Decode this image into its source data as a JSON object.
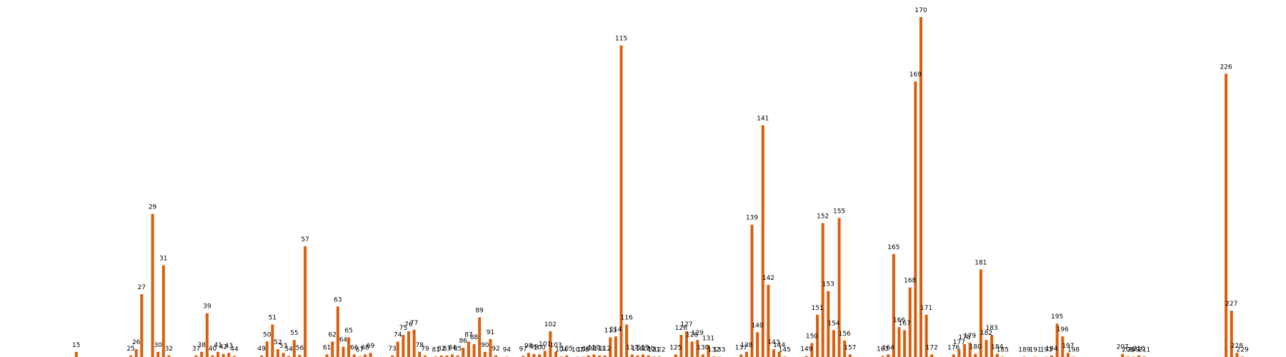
{
  "chart_data": {
    "type": "bar",
    "title": "",
    "xlabel": "",
    "ylabel": "",
    "color": "#d95f0e",
    "x_range": [
      1,
      237
    ],
    "ylim": [
      0,
      66
    ],
    "grid": false,
    "legend": "none",
    "points": [
      {
        "x": 15,
        "y": 1.0
      },
      {
        "x": 25,
        "y": 0.3
      },
      {
        "x": 26,
        "y": 1.5
      },
      {
        "x": 27,
        "y": 12.2
      },
      {
        "x": 29,
        "y": 27.8
      },
      {
        "x": 30,
        "y": 1.0
      },
      {
        "x": 31,
        "y": 17.8
      },
      {
        "x": 32,
        "y": 0.3
      },
      {
        "x": 37,
        "y": 0.3
      },
      {
        "x": 38,
        "y": 1.0
      },
      {
        "x": 39,
        "y": 8.5
      },
      {
        "x": 40,
        "y": 0.3
      },
      {
        "x": 41,
        "y": 1.0
      },
      {
        "x": 42,
        "y": 0.6
      },
      {
        "x": 43,
        "y": 0.8
      },
      {
        "x": 44,
        "y": 0.2
      },
      {
        "x": 49,
        "y": 0.3
      },
      {
        "x": 50,
        "y": 3.0
      },
      {
        "x": 51,
        "y": 6.3
      },
      {
        "x": 52,
        "y": 1.5
      },
      {
        "x": 53,
        "y": 0.8
      },
      {
        "x": 54,
        "y": 0.2
      },
      {
        "x": 55,
        "y": 3.3
      },
      {
        "x": 56,
        "y": 0.4
      },
      {
        "x": 57,
        "y": 21.5
      },
      {
        "x": 61,
        "y": 0.5
      },
      {
        "x": 62,
        "y": 3.0
      },
      {
        "x": 63,
        "y": 9.8
      },
      {
        "x": 64,
        "y": 2.0
      },
      {
        "x": 65,
        "y": 3.8
      },
      {
        "x": 66,
        "y": 0.5
      },
      {
        "x": 67,
        "y": 0.1
      },
      {
        "x": 68,
        "y": 0.5
      },
      {
        "x": 69,
        "y": 0.8
      },
      {
        "x": 73,
        "y": 0.3
      },
      {
        "x": 74,
        "y": 3.0
      },
      {
        "x": 75,
        "y": 4.3
      },
      {
        "x": 76,
        "y": 5.0
      },
      {
        "x": 77,
        "y": 5.3
      },
      {
        "x": 78,
        "y": 1.0
      },
      {
        "x": 79,
        "y": 0.3
      },
      {
        "x": 81,
        "y": 0.1
      },
      {
        "x": 82,
        "y": 0.3
      },
      {
        "x": 83,
        "y": 0.3
      },
      {
        "x": 84,
        "y": 0.5
      },
      {
        "x": 85,
        "y": 0.3
      },
      {
        "x": 86,
        "y": 1.8
      },
      {
        "x": 87,
        "y": 3.0
      },
      {
        "x": 88,
        "y": 2.5
      },
      {
        "x": 89,
        "y": 7.7
      },
      {
        "x": 90,
        "y": 1.0
      },
      {
        "x": 91,
        "y": 3.5
      },
      {
        "x": 92,
        "y": 0.3
      },
      {
        "x": 94,
        "y": 0.05
      },
      {
        "x": 97,
        "y": 0.2
      },
      {
        "x": 98,
        "y": 0.8
      },
      {
        "x": 99,
        "y": 0.6
      },
      {
        "x": 100,
        "y": 0.5
      },
      {
        "x": 101,
        "y": 1.2
      },
      {
        "x": 102,
        "y": 5.0
      },
      {
        "x": 103,
        "y": 1.0
      },
      {
        "x": 104,
        "y": 0.1
      },
      {
        "x": 105,
        "y": 0.3
      },
      {
        "x": 107,
        "y": 0.05
      },
      {
        "x": 108,
        "y": 0.05
      },
      {
        "x": 109,
        "y": 0.3
      },
      {
        "x": 110,
        "y": 0.5
      },
      {
        "x": 111,
        "y": 0.3
      },
      {
        "x": 112,
        "y": 0.3
      },
      {
        "x": 113,
        "y": 3.8
      },
      {
        "x": 114,
        "y": 4.0
      },
      {
        "x": 115,
        "y": 60.5
      },
      {
        "x": 116,
        "y": 6.3
      },
      {
        "x": 117,
        "y": 0.5
      },
      {
        "x": 118,
        "y": 0.3
      },
      {
        "x": 119,
        "y": 0.5
      },
      {
        "x": 120,
        "y": 0.3
      },
      {
        "x": 121,
        "y": 0.1
      },
      {
        "x": 122,
        "y": 0.1
      },
      {
        "x": 125,
        "y": 0.5
      },
      {
        "x": 126,
        "y": 4.3
      },
      {
        "x": 127,
        "y": 5.0
      },
      {
        "x": 128,
        "y": 3.0
      },
      {
        "x": 129,
        "y": 3.3
      },
      {
        "x": 130,
        "y": 0.5
      },
      {
        "x": 131,
        "y": 2.3
      },
      {
        "x": 132,
        "y": 0.1
      },
      {
        "x": 133,
        "y": 0.05
      },
      {
        "x": 137,
        "y": 0.5
      },
      {
        "x": 138,
        "y": 1.0
      },
      {
        "x": 139,
        "y": 25.7
      },
      {
        "x": 140,
        "y": 4.8
      },
      {
        "x": 141,
        "y": 45.0
      },
      {
        "x": 142,
        "y": 14.0
      },
      {
        "x": 143,
        "y": 1.5
      },
      {
        "x": 144,
        "y": 1.0
      },
      {
        "x": 145,
        "y": 0.1
      },
      {
        "x": 149,
        "y": 0.2
      },
      {
        "x": 150,
        "y": 2.7
      },
      {
        "x": 151,
        "y": 8.2
      },
      {
        "x": 152,
        "y": 26.0
      },
      {
        "x": 153,
        "y": 12.8
      },
      {
        "x": 154,
        "y": 5.2
      },
      {
        "x": 155,
        "y": 27.0
      },
      {
        "x": 156,
        "y": 3.2
      },
      {
        "x": 157,
        "y": 0.5
      },
      {
        "x": 163,
        "y": 0.2
      },
      {
        "x": 164,
        "y": 0.5
      },
      {
        "x": 165,
        "y": 20.0
      },
      {
        "x": 166,
        "y": 5.8
      },
      {
        "x": 167,
        "y": 5.2
      },
      {
        "x": 168,
        "y": 13.5
      },
      {
        "x": 169,
        "y": 53.5
      },
      {
        "x": 170,
        "y": 66.0
      },
      {
        "x": 171,
        "y": 8.2
      },
      {
        "x": 172,
        "y": 0.5
      },
      {
        "x": 176,
        "y": 0.5
      },
      {
        "x": 177,
        "y": 1.5
      },
      {
        "x": 178,
        "y": 2.5
      },
      {
        "x": 179,
        "y": 2.8
      },
      {
        "x": 180,
        "y": 0.6
      },
      {
        "x": 181,
        "y": 17.0
      },
      {
        "x": 182,
        "y": 3.3
      },
      {
        "x": 183,
        "y": 4.3
      },
      {
        "x": 184,
        "y": 0.6
      },
      {
        "x": 185,
        "y": 0.05
      },
      {
        "x": 189,
        "y": 0.05
      },
      {
        "x": 191,
        "y": 0.05
      },
      {
        "x": 193,
        "y": 0.05
      },
      {
        "x": 194,
        "y": 0.3
      },
      {
        "x": 195,
        "y": 6.5
      },
      {
        "x": 196,
        "y": 4.0
      },
      {
        "x": 197,
        "y": 0.8
      },
      {
        "x": 198,
        "y": 0.05
      },
      {
        "x": 207,
        "y": 0.6
      },
      {
        "x": 208,
        "y": 0.1
      },
      {
        "x": 209,
        "y": 0.05
      },
      {
        "x": 210,
        "y": 0.3
      },
      {
        "x": 211,
        "y": 0.1
      },
      {
        "x": 226,
        "y": 55.0
      },
      {
        "x": 227,
        "y": 9.0
      },
      {
        "x": 228,
        "y": 0.8
      },
      {
        "x": 229,
        "y": 0.1
      }
    ]
  }
}
